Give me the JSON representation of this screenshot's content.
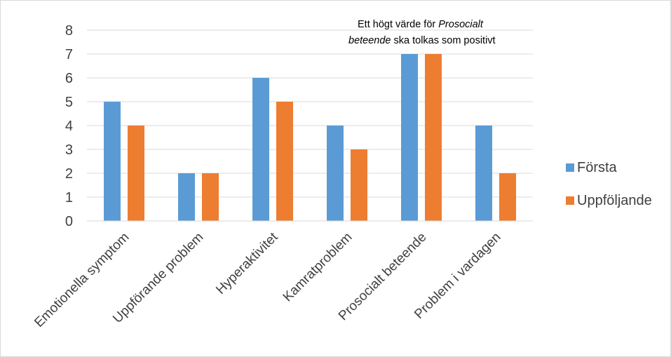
{
  "chart_data": {
    "type": "bar",
    "categories": [
      "Emotionella symptom",
      "Uppförande problem",
      "Hyperaktivitet",
      "Kamratproblem",
      "Prosocialt beteende",
      "Problem i vardagen"
    ],
    "series": [
      {
        "name": "Första",
        "values": [
          5,
          2,
          6,
          4,
          7,
          4
        ],
        "color": "#5b9bd5"
      },
      {
        "name": "Uppföljande",
        "values": [
          4,
          2,
          5,
          3,
          7,
          2
        ],
        "color": "#ed7d31"
      }
    ],
    "yticks": [
      "0",
      "1",
      "2",
      "3",
      "4",
      "5",
      "6",
      "7",
      "8"
    ],
    "ylim": [
      0,
      8
    ],
    "grid": true,
    "legend_position": "right",
    "annotation": {
      "line1_prefix": "Ett högt värde för ",
      "line1_italic": "Prosocialt",
      "line2_italic": "beteende",
      "line2_suffix": " ska tolkas som positivt"
    }
  }
}
